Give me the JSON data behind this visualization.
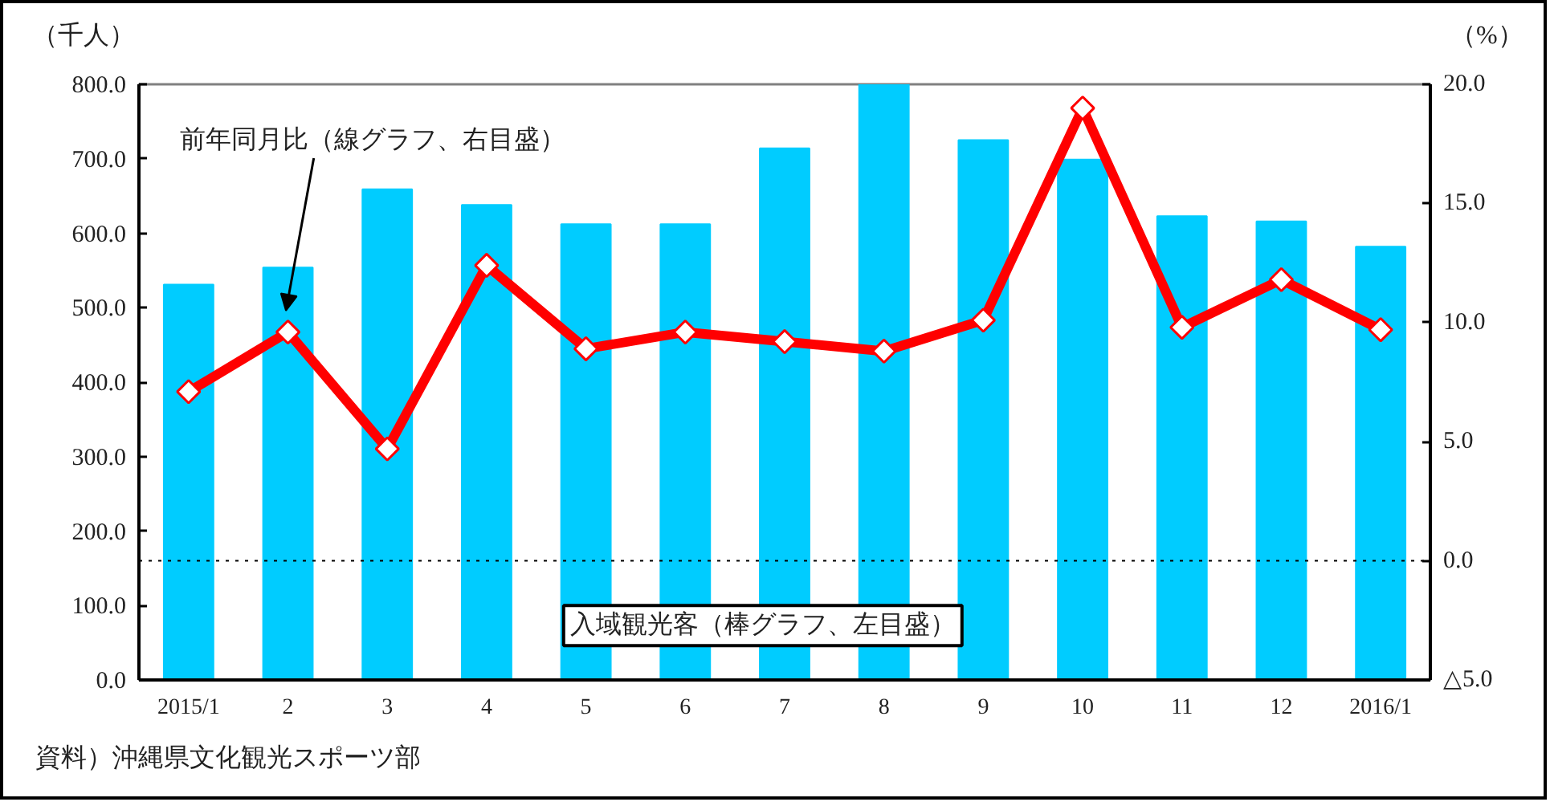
{
  "chart_data": {
    "type": "bar",
    "categories": [
      "2015/1",
      "2",
      "3",
      "4",
      "5",
      "6",
      "7",
      "8",
      "9",
      "10",
      "11",
      "12",
      "2016/1"
    ],
    "series": [
      {
        "name": "入域観光客（棒グラフ、左目盛）",
        "color": "#00ccff",
        "values": [
          531,
          554,
          659,
          638,
          612,
          612,
          714,
          800,
          725,
          699,
          623,
          616,
          582
        ]
      },
      {
        "name": "前年同月比（線グラフ、右目盛）",
        "type": "line",
        "axis": "y2",
        "color": "#ff0000",
        "values": [
          7.1,
          9.6,
          4.7,
          12.4,
          8.9,
          9.6,
          9.2,
          8.8,
          10.1,
          19.0,
          9.8,
          11.8,
          9.7
        ]
      }
    ],
    "ylabel": "（千人）",
    "y2label": "（%）",
    "ylim": [
      0,
      800
    ],
    "yticks": [
      {
        "value": 0,
        "label": "0.0"
      },
      {
        "value": 100,
        "label": "100.0"
      },
      {
        "value": 200,
        "label": "200.0"
      },
      {
        "value": 300,
        "label": "300.0"
      },
      {
        "value": 400,
        "label": "400.0"
      },
      {
        "value": 500,
        "label": "500.0"
      },
      {
        "value": 600,
        "label": "600.0"
      },
      {
        "value": 700,
        "label": "700.0"
      },
      {
        "value": 800,
        "label": "800.0"
      }
    ],
    "y2lim": [
      -5,
      20
    ],
    "y2ticks": [
      {
        "value": -5,
        "label": "△5.0"
      },
      {
        "value": 0,
        "label": "0.0"
      },
      {
        "value": 5,
        "label": "5.0"
      },
      {
        "value": 10,
        "label": "10.0"
      },
      {
        "value": 15,
        "label": "15.0"
      },
      {
        "value": 20,
        "label": "20.0"
      }
    ],
    "ref_lines": [
      {
        "axis": "y2",
        "value": 0,
        "color": "#000000",
        "line_style": "dotted"
      }
    ],
    "annotations": [
      "資料）沖縄県文化観光スポーツ部"
    ],
    "legend": false,
    "grid": false,
    "marker": "diamond",
    "line_style": "solid"
  }
}
